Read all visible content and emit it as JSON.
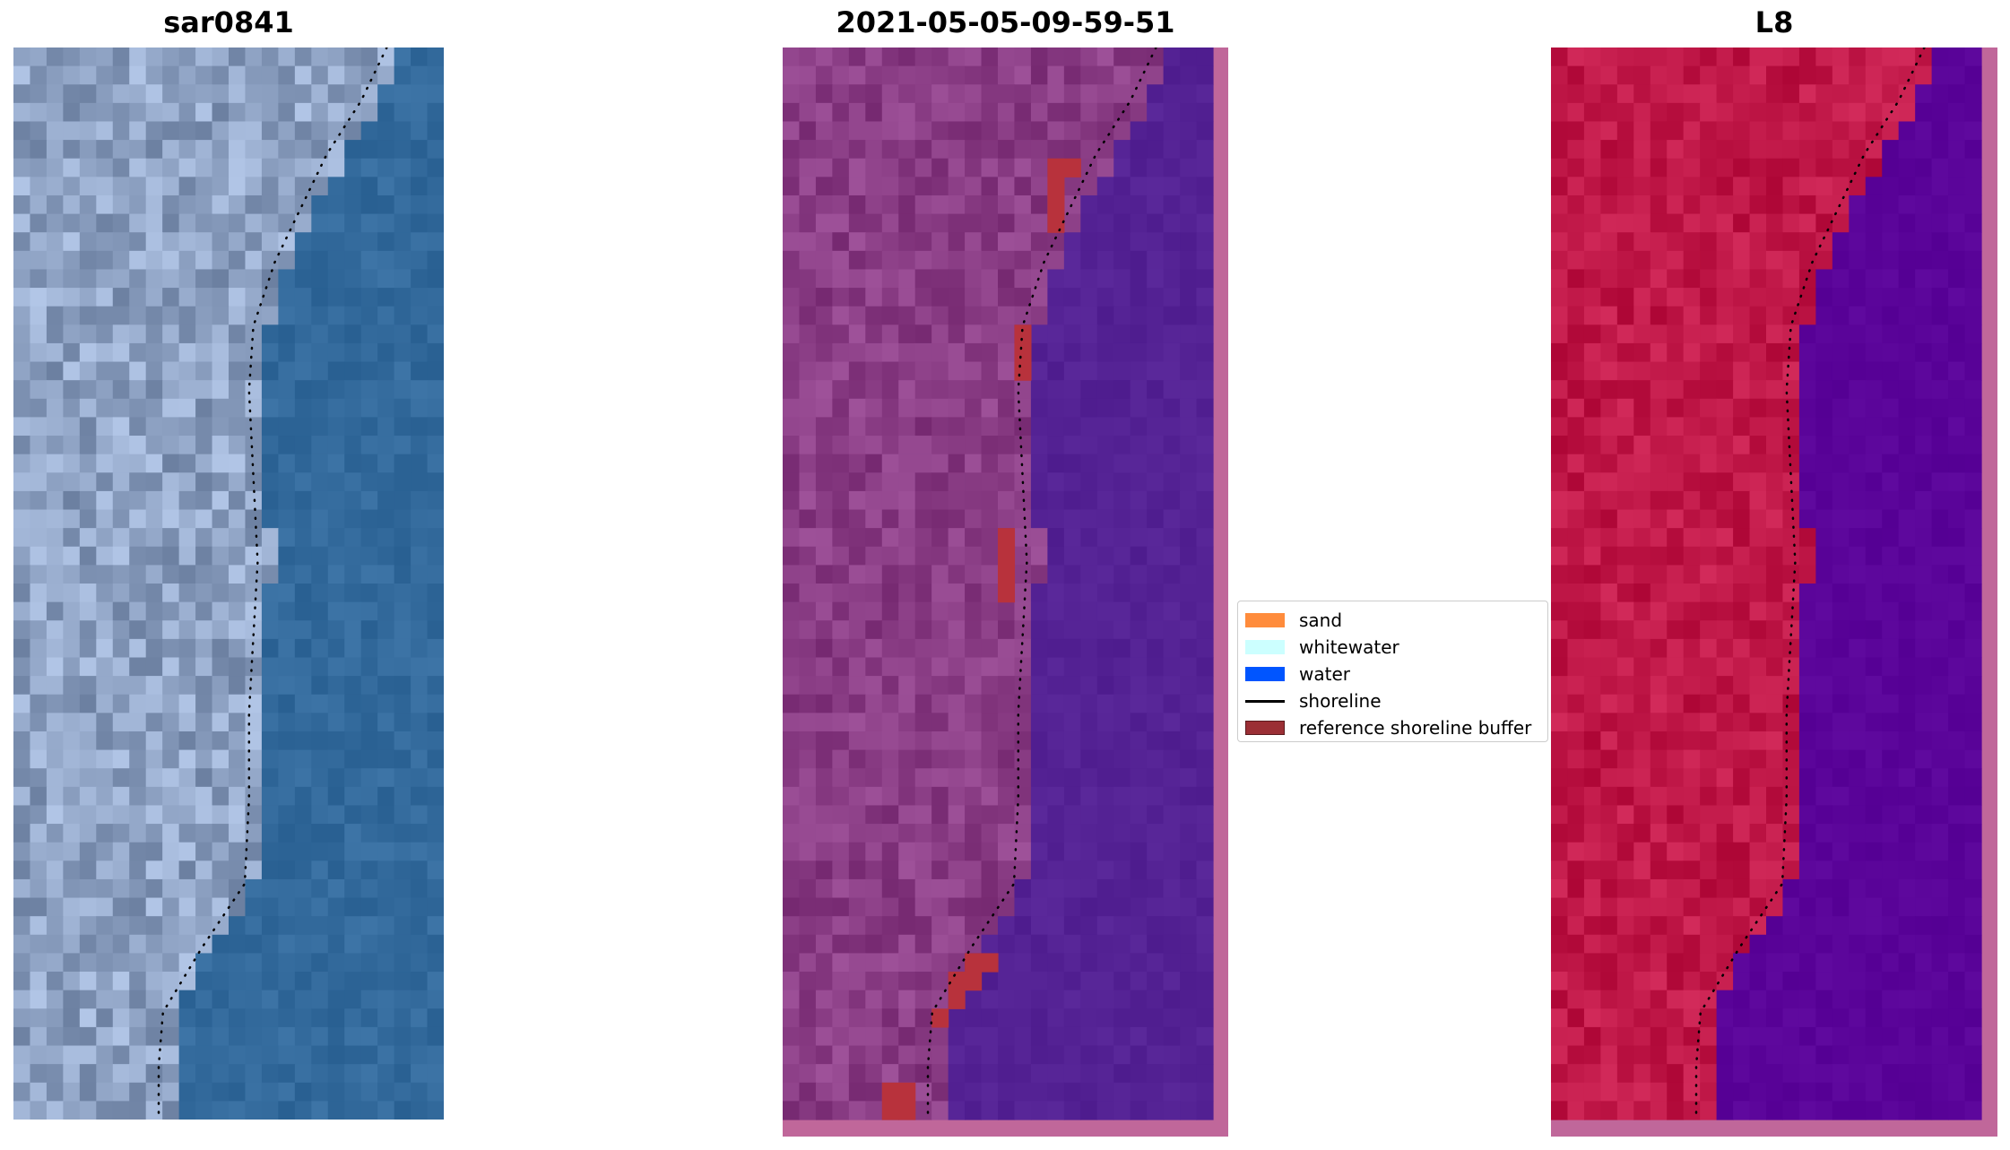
{
  "figure": {
    "panels": [
      {
        "id": "rgb",
        "title": "sar0841"
      },
      {
        "id": "classified",
        "title": "2021-05-05-09-59-51"
      },
      {
        "id": "mndwi",
        "title": "L8"
      }
    ],
    "legend": {
      "placement": "center",
      "items": [
        {
          "label": "sand",
          "kind": "patch",
          "color": "#ff8c3c"
        },
        {
          "label": "whitewater",
          "kind": "patch",
          "color": "#ccffff"
        },
        {
          "label": "water",
          "kind": "patch",
          "color": "#0055ff"
        },
        {
          "label": "shoreline",
          "kind": "line",
          "color": "#000000"
        },
        {
          "label": "reference shoreline buffer",
          "kind": "patch",
          "color": "#9b2f35"
        }
      ]
    }
  },
  "chart_data": {
    "type": "heatmap",
    "panels": [
      "sar0841",
      "2021-05-05-09-59-51",
      "L8"
    ],
    "grid": false,
    "axes": "off",
    "shoreline_style": "dotted black",
    "land_colors": {
      "sar0841": "#8fa3c4",
      "2021-05-05-09-59-51": "#8a3d85",
      "L8": "#c01848"
    },
    "water_colors": {
      "sar0841": "#336a9c",
      "2021-05-05-09-59-51": "#542294",
      "L8": "#5a0499"
    },
    "frame_color": "#c0679a"
  }
}
